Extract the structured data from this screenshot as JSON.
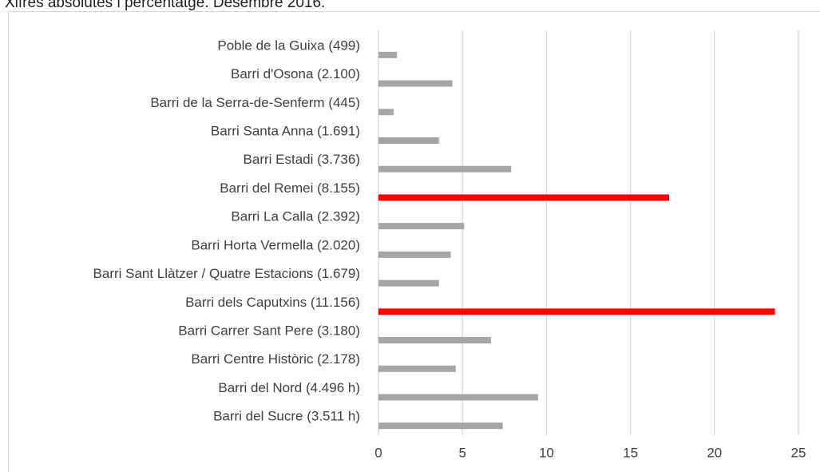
{
  "chart_data": {
    "type": "barh",
    "subtitle": "Xifres absolutes i percentatge. Desembre 2016.",
    "categories": [
      "Poble de la Guixa (499)",
      "Barri d'Osona (2.100)",
      "Barri de la Serra-de-Senferm (445)",
      "Barri Santa Anna (1.691)",
      "Barri Estadi (3.736)",
      "Barri del Remei (8.155)",
      "Barri La Calla (2.392)",
      "Barri Horta Vermella (2.020)",
      "Barri Sant Llàtzer / Quatre Estacions (1.679)",
      "Barri dels Caputxins (11.156)",
      "Barri Carrer Sant Pere (3.180)",
      "Barri Centre Històric (2.178)",
      "Barri del Nord (4.496 h)",
      "Barri del Sucre (3.511 h)"
    ],
    "values": [
      1.1,
      4.4,
      0.9,
      3.6,
      7.9,
      17.3,
      5.1,
      4.3,
      3.6,
      23.6,
      6.7,
      4.6,
      9.5,
      7.4
    ],
    "colors": [
      "#a5a5a5",
      "#a5a5a5",
      "#a5a5a5",
      "#a5a5a5",
      "#a5a5a5",
      "#ff0000",
      "#a5a5a5",
      "#a5a5a5",
      "#a5a5a5",
      "#ff0000",
      "#a5a5a5",
      "#a5a5a5",
      "#a5a5a5",
      "#a5a5a5"
    ],
    "xlim": [
      0,
      25
    ],
    "xticks": [
      0,
      5,
      10,
      15,
      20,
      25
    ],
    "grid": true
  }
}
